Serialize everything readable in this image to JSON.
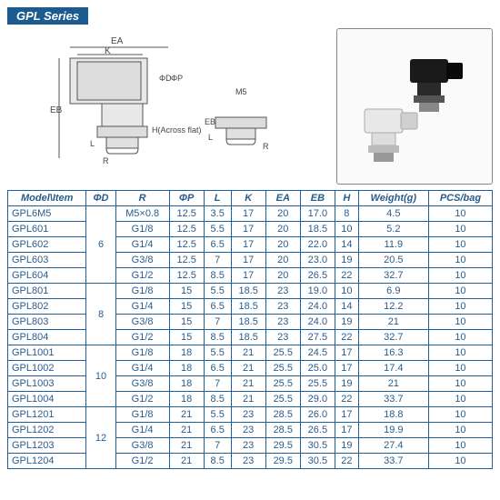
{
  "title": "GPL Series",
  "diagram_labels": [
    "EA",
    "K",
    "ΦD",
    "ΦP",
    "EB",
    "L",
    "R",
    "H(Across flat)",
    "M5",
    "EB",
    "L",
    "R"
  ],
  "columns": [
    "Model\\Item",
    "ΦD",
    "R",
    "ΦP",
    "L",
    "K",
    "EA",
    "EB",
    "H",
    "Weight(g)",
    "PCS/bag"
  ],
  "groups": [
    {
      "phiD": "",
      "rows": [
        [
          "GPL6M5",
          "M5×0.8",
          "12.5",
          "3.5",
          "17",
          "20",
          "17.0",
          "8",
          "4.5",
          "10"
        ]
      ]
    },
    {
      "phiD": "6",
      "rows": [
        [
          "GPL601",
          "G1/8",
          "12.5",
          "5.5",
          "17",
          "20",
          "18.5",
          "10",
          "5.2",
          "10"
        ],
        [
          "GPL602",
          "G1/4",
          "12.5",
          "6.5",
          "17",
          "20",
          "22.0",
          "14",
          "11.9",
          "10"
        ],
        [
          "GPL603",
          "G3/8",
          "12.5",
          "7",
          "17",
          "20",
          "23.0",
          "19",
          "20.5",
          "10"
        ],
        [
          "GPL604",
          "G1/2",
          "12.5",
          "8.5",
          "17",
          "20",
          "26.5",
          "22",
          "32.7",
          "10"
        ]
      ]
    },
    {
      "phiD": "8",
      "rows": [
        [
          "GPL801",
          "G1/8",
          "15",
          "5.5",
          "18.5",
          "23",
          "19.0",
          "10",
          "6.9",
          "10"
        ],
        [
          "GPL802",
          "G1/4",
          "15",
          "6.5",
          "18.5",
          "23",
          "24.0",
          "14",
          "12.2",
          "10"
        ],
        [
          "GPL803",
          "G3/8",
          "15",
          "7",
          "18.5",
          "23",
          "24.0",
          "19",
          "21",
          "10"
        ],
        [
          "GPL804",
          "G1/2",
          "15",
          "8.5",
          "18.5",
          "23",
          "27.5",
          "22",
          "32.7",
          "10"
        ]
      ]
    },
    {
      "phiD": "10",
      "rows": [
        [
          "GPL1001",
          "G1/8",
          "18",
          "5.5",
          "21",
          "25.5",
          "24.5",
          "17",
          "16.3",
          "10"
        ],
        [
          "GPL1002",
          "G1/4",
          "18",
          "6.5",
          "21",
          "25.5",
          "25.0",
          "17",
          "17.4",
          "10"
        ],
        [
          "GPL1003",
          "G3/8",
          "18",
          "7",
          "21",
          "25.5",
          "25.5",
          "19",
          "21",
          "10"
        ],
        [
          "GPL1004",
          "G1/2",
          "18",
          "8.5",
          "21",
          "25.5",
          "29.0",
          "22",
          "33.7",
          "10"
        ]
      ]
    },
    {
      "phiD": "12",
      "rows": [
        [
          "GPL1201",
          "G1/8",
          "21",
          "5.5",
          "23",
          "28.5",
          "26.0",
          "17",
          "18.8",
          "10"
        ],
        [
          "GPL1202",
          "G1/4",
          "21",
          "6.5",
          "23",
          "28.5",
          "26.5",
          "17",
          "19.9",
          "10"
        ],
        [
          "GPL1203",
          "G3/8",
          "21",
          "7",
          "23",
          "29.5",
          "30.5",
          "19",
          "27.4",
          "10"
        ],
        [
          "GPL1204",
          "G1/2",
          "21",
          "8.5",
          "23",
          "29.5",
          "30.5",
          "22",
          "33.7",
          "10"
        ]
      ]
    }
  ],
  "colors": {
    "border": "#1e5f9c",
    "text": "#2a5c8c",
    "badge": "#1b5b8f"
  }
}
